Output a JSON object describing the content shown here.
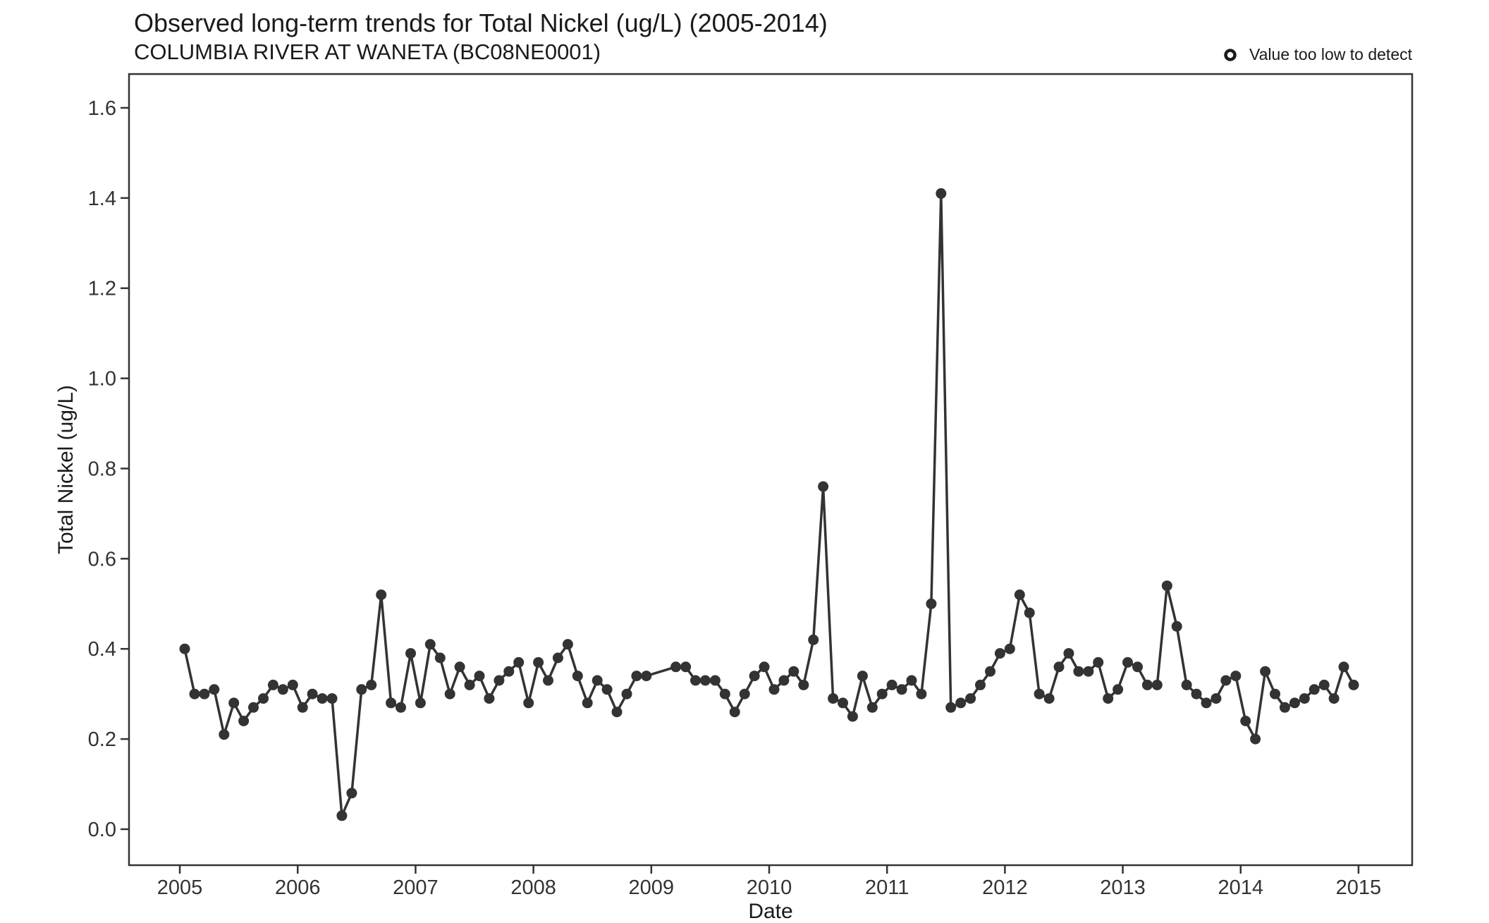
{
  "header": {
    "title": "Observed long-term trends for Total Nickel (ug/L) (2005-2014)",
    "subtitle": "COLUMBIA RIVER AT WANETA (BC08NE0001)"
  },
  "legend": {
    "marker": "open-circle-icon",
    "label": "Value too low to detect",
    "position": "top-right"
  },
  "chart_data": {
    "type": "line",
    "title": "Observed long-term trends for Total Nickel (ug/L) (2005-2014)",
    "subtitle": "COLUMBIA RIVER AT WANETA (BC08NE0001)",
    "xlabel": "Date",
    "ylabel": "Total Nickel (ug/L)",
    "xlim": [
      2004.569,
      2015.455
    ],
    "ylim": [
      -0.0798,
      1.675
    ],
    "x_ticks": [
      2005,
      2006,
      2007,
      2008,
      2009,
      2010,
      2011,
      2012,
      2013,
      2014,
      2015
    ],
    "y_ticks": [
      0.0,
      0.2,
      0.4,
      0.6,
      0.8,
      1.0,
      1.2,
      1.4,
      1.6
    ],
    "grid": false,
    "marker_style": "filled-circle",
    "colors": {
      "line": "#333333",
      "point": "#333333",
      "axis": "#333333",
      "text": "#1a1a1a",
      "background": "#ffffff"
    },
    "series": [
      {
        "name": "Total Nickel (ug/L)",
        "points": [
          [
            2005,
            1,
            0.4
          ],
          [
            2005,
            2,
            0.3
          ],
          [
            2005,
            3,
            0.3
          ],
          [
            2005,
            4,
            0.31
          ],
          [
            2005,
            5,
            0.21
          ],
          [
            2005,
            6,
            0.28
          ],
          [
            2005,
            7,
            0.24
          ],
          [
            2005,
            8,
            0.27
          ],
          [
            2005,
            9,
            0.29
          ],
          [
            2005,
            10,
            0.32
          ],
          [
            2005,
            11,
            0.31
          ],
          [
            2005,
            12,
            0.32
          ],
          [
            2006,
            1,
            0.27
          ],
          [
            2006,
            2,
            0.3
          ],
          [
            2006,
            3,
            0.29
          ],
          [
            2006,
            4,
            0.29
          ],
          [
            2006,
            5,
            0.03
          ],
          [
            2006,
            6,
            0.08
          ],
          [
            2006,
            7,
            0.31
          ],
          [
            2006,
            8,
            0.32
          ],
          [
            2006,
            9,
            0.52
          ],
          [
            2006,
            10,
            0.28
          ],
          [
            2006,
            11,
            0.27
          ],
          [
            2006,
            12,
            0.39
          ],
          [
            2007,
            1,
            0.28
          ],
          [
            2007,
            2,
            0.41
          ],
          [
            2007,
            3,
            0.38
          ],
          [
            2007,
            4,
            0.3
          ],
          [
            2007,
            5,
            0.36
          ],
          [
            2007,
            6,
            0.32
          ],
          [
            2007,
            7,
            0.34
          ],
          [
            2007,
            8,
            0.29
          ],
          [
            2007,
            9,
            0.33
          ],
          [
            2007,
            10,
            0.35
          ],
          [
            2007,
            11,
            0.37
          ],
          [
            2007,
            12,
            0.28
          ],
          [
            2008,
            1,
            0.37
          ],
          [
            2008,
            2,
            0.33
          ],
          [
            2008,
            3,
            0.38
          ],
          [
            2008,
            4,
            0.41
          ],
          [
            2008,
            5,
            0.34
          ],
          [
            2008,
            6,
            0.28
          ],
          [
            2008,
            7,
            0.33
          ],
          [
            2008,
            8,
            0.31
          ],
          [
            2008,
            9,
            0.26
          ],
          [
            2008,
            10,
            0.3
          ],
          [
            2008,
            11,
            0.34
          ],
          [
            2008,
            12,
            0.34
          ],
          [
            2009,
            3,
            0.36
          ],
          [
            2009,
            4,
            0.36
          ],
          [
            2009,
            5,
            0.33
          ],
          [
            2009,
            6,
            0.33
          ],
          [
            2009,
            7,
            0.33
          ],
          [
            2009,
            8,
            0.3
          ],
          [
            2009,
            9,
            0.26
          ],
          [
            2009,
            10,
            0.3
          ],
          [
            2009,
            11,
            0.34
          ],
          [
            2009,
            12,
            0.36
          ],
          [
            2010,
            1,
            0.31
          ],
          [
            2010,
            2,
            0.33
          ],
          [
            2010,
            3,
            0.35
          ],
          [
            2010,
            4,
            0.32
          ],
          [
            2010,
            5,
            0.42
          ],
          [
            2010,
            6,
            0.76
          ],
          [
            2010,
            7,
            0.29
          ],
          [
            2010,
            8,
            0.28
          ],
          [
            2010,
            9,
            0.25
          ],
          [
            2010,
            10,
            0.34
          ],
          [
            2010,
            11,
            0.27
          ],
          [
            2010,
            12,
            0.3
          ],
          [
            2011,
            1,
            0.32
          ],
          [
            2011,
            2,
            0.31
          ],
          [
            2011,
            3,
            0.33
          ],
          [
            2011,
            4,
            0.3
          ],
          [
            2011,
            5,
            0.5
          ],
          [
            2011,
            6,
            1.41
          ],
          [
            2011,
            7,
            0.27
          ],
          [
            2011,
            8,
            0.28
          ],
          [
            2011,
            9,
            0.29
          ],
          [
            2011,
            10,
            0.32
          ],
          [
            2011,
            11,
            0.35
          ],
          [
            2011,
            12,
            0.39
          ],
          [
            2012,
            1,
            0.4
          ],
          [
            2012,
            2,
            0.52
          ],
          [
            2012,
            3,
            0.48
          ],
          [
            2012,
            4,
            0.3
          ],
          [
            2012,
            5,
            0.29
          ],
          [
            2012,
            6,
            0.36
          ],
          [
            2012,
            7,
            0.39
          ],
          [
            2012,
            8,
            0.35
          ],
          [
            2012,
            9,
            0.35
          ],
          [
            2012,
            10,
            0.37
          ],
          [
            2012,
            11,
            0.29
          ],
          [
            2012,
            12,
            0.31
          ],
          [
            2013,
            1,
            0.37
          ],
          [
            2013,
            2,
            0.36
          ],
          [
            2013,
            3,
            0.32
          ],
          [
            2013,
            4,
            0.32
          ],
          [
            2013,
            5,
            0.54
          ],
          [
            2013,
            6,
            0.45
          ],
          [
            2013,
            7,
            0.32
          ],
          [
            2013,
            8,
            0.3
          ],
          [
            2013,
            9,
            0.28
          ],
          [
            2013,
            10,
            0.29
          ],
          [
            2013,
            11,
            0.33
          ],
          [
            2013,
            12,
            0.34
          ],
          [
            2014,
            1,
            0.24
          ],
          [
            2014,
            2,
            0.2
          ],
          [
            2014,
            3,
            0.35
          ],
          [
            2014,
            4,
            0.3
          ],
          [
            2014,
            5,
            0.27
          ],
          [
            2014,
            6,
            0.28
          ],
          [
            2014,
            7,
            0.29
          ],
          [
            2014,
            8,
            0.31
          ],
          [
            2014,
            9,
            0.32
          ],
          [
            2014,
            10,
            0.29
          ],
          [
            2014,
            11,
            0.36
          ],
          [
            2014,
            12,
            0.32
          ]
        ]
      }
    ],
    "legend": {
      "label": "Value too low to detect",
      "marker": "open-circle"
    }
  }
}
